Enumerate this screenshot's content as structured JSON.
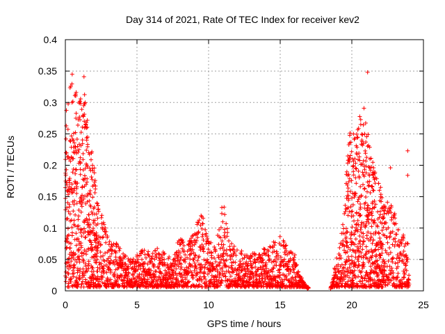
{
  "chart_data": {
    "type": "scatter",
    "title": "Day 314 of 2021, Rate Of TEC Index for receiver kev2",
    "xlabel": "GPS time / hours",
    "ylabel": "ROTI / TECUs",
    "xlim": [
      0,
      25
    ],
    "ylim": [
      0,
      0.4
    ],
    "xticks": [
      0,
      5,
      10,
      15,
      20,
      25
    ],
    "xtick_labels": [
      "0",
      "5",
      "10",
      "15",
      "20",
      "25"
    ],
    "yticks": [
      0,
      0.05,
      0.1,
      0.15,
      0.2,
      0.25,
      0.3,
      0.35,
      0.4
    ],
    "ytick_labels": [
      "0",
      "0.05",
      "0.1",
      "0.15",
      "0.2",
      "0.25",
      "0.3",
      "0.35",
      "0.4"
    ],
    "grid": true,
    "marker": "+",
    "color": "#ff0000",
    "envelope": {
      "x": [
        0.0,
        0.25,
        0.4,
        0.6,
        0.9,
        1.2,
        1.5,
        1.8,
        2.2,
        2.6,
        3.0,
        3.5,
        4.0,
        4.5,
        5.0,
        5.5,
        6.0,
        6.5,
        7.0,
        7.5,
        8.0,
        8.5,
        9.0,
        9.5,
        10.0,
        10.5,
        11.0,
        11.5,
        12.0,
        12.5,
        13.0,
        13.5,
        14.0,
        14.5,
        15.0,
        15.5,
        16.0,
        16.3,
        16.5,
        17.0,
        17.5,
        18.0,
        18.5,
        18.9,
        19.2,
        19.5,
        19.8,
        20.2,
        20.6,
        21.0,
        21.3,
        21.8,
        22.3,
        22.8,
        23.2,
        23.6,
        24.0
      ],
      "y": [
        0.3,
        0.3,
        0.38,
        0.33,
        0.31,
        0.34,
        0.29,
        0.24,
        0.16,
        0.12,
        0.09,
        0.08,
        0.06,
        0.05,
        0.06,
        0.07,
        0.06,
        0.07,
        0.06,
        0.05,
        0.09,
        0.07,
        0.1,
        0.13,
        0.08,
        0.07,
        0.15,
        0.08,
        0.07,
        0.06,
        0.06,
        0.06,
        0.07,
        0.08,
        0.09,
        0.07,
        0.06,
        0.03,
        0.02,
        0.0,
        0.0,
        0.0,
        0.0,
        0.05,
        0.09,
        0.13,
        0.27,
        0.25,
        0.29,
        0.3,
        0.22,
        0.18,
        0.15,
        0.14,
        0.11,
        0.09,
        0.08
      ]
    },
    "outliers": [
      {
        "x": 21.1,
        "y": 0.348
      },
      {
        "x": 23.9,
        "y": 0.223
      },
      {
        "x": 23.9,
        "y": 0.184
      },
      {
        "x": 1.3,
        "y": 0.341
      },
      {
        "x": 22.7,
        "y": 0.196
      }
    ]
  }
}
